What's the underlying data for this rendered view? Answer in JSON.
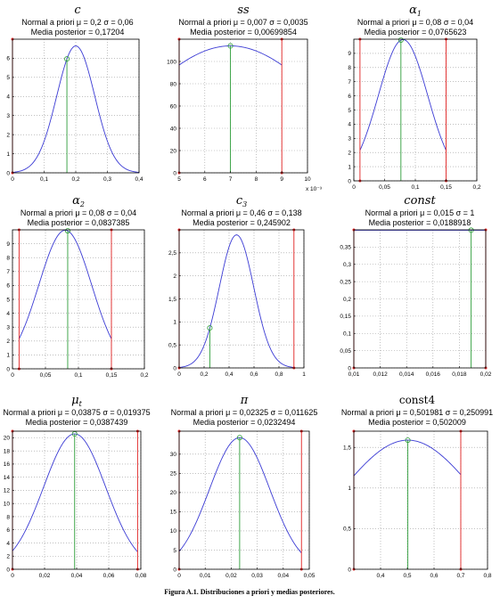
{
  "caption": "Figura A.1.  Distribuciones a priori y medias posteriores.",
  "colors": {
    "prior": "#3b3bd4",
    "posterior": "#2e9e3a",
    "bounds": "#e02020",
    "grid": "#9a9a9a",
    "frame": "#000000"
  },
  "chart_data": [
    {
      "type": "line",
      "title": "c",
      "title_sub": "",
      "prior_text": "Normal a priori μ = 0,2 σ = 0,06",
      "posterior_text": "Media posterior = 0,17204",
      "prior_mean": 0.2,
      "prior_sd": 0.06,
      "curve_range": [
        0.0,
        0.4
      ],
      "posterior_mean": 0.17204,
      "bounds": [
        0.0
      ],
      "xlim": [
        0,
        0.4
      ],
      "ylim": [
        0,
        7
      ],
      "xticks": [
        0,
        0.1,
        0.2,
        0.3,
        0.4
      ],
      "xticklabels": [
        "0",
        "0,1",
        "0,2",
        "0,3",
        "0,4"
      ],
      "yticks": [
        0,
        1,
        2,
        3,
        4,
        5,
        6
      ],
      "yticklabels": [
        "0",
        "1",
        "2",
        "3",
        "4",
        "5",
        "6"
      ],
      "x_multiplier": ""
    },
    {
      "type": "line",
      "title": "ss",
      "title_sub": "",
      "prior_text": "Normal a priori μ = 0,007 σ = 0,0035",
      "posterior_text": "Media posterior = 0,00699854",
      "prior_mean": 0.007,
      "prior_sd": 0.0035,
      "curve_range": [
        0.005,
        0.009
      ],
      "posterior_mean": 0.00699854,
      "bounds": [
        0.005,
        0.009
      ],
      "xlim": [
        0.005,
        0.01
      ],
      "ylim": [
        0,
        120
      ],
      "xticks": [
        0.005,
        0.006,
        0.007,
        0.008,
        0.009,
        0.01
      ],
      "xticklabels": [
        "5",
        "6",
        "7",
        "8",
        "9",
        "10"
      ],
      "yticks": [
        0,
        20,
        40,
        60,
        80,
        100
      ],
      "yticklabels": [
        "0",
        "20",
        "40",
        "60",
        "80",
        "100"
      ],
      "x_multiplier": "x 10⁻³"
    },
    {
      "type": "line",
      "title": "α",
      "title_sub": "1",
      "prior_text": "Normal a priori μ = 0,08 σ = 0,04",
      "posterior_text": "Media posterior = 0,0765623",
      "prior_mean": 0.08,
      "prior_sd": 0.04,
      "curve_range": [
        0.01,
        0.15
      ],
      "posterior_mean": 0.0765623,
      "bounds": [
        0.01,
        0.15
      ],
      "xlim": [
        0,
        0.2
      ],
      "ylim": [
        0,
        10
      ],
      "xticks": [
        0,
        0.05,
        0.1,
        0.15,
        0.2
      ],
      "xticklabels": [
        "0",
        "0,05",
        "0,1",
        "0,15",
        "0,2"
      ],
      "yticks": [
        0,
        1,
        2,
        3,
        4,
        5,
        6,
        7,
        8,
        9
      ],
      "yticklabels": [
        "0",
        "1",
        "2",
        "3",
        "4",
        "5",
        "6",
        "7",
        "8",
        "9"
      ],
      "x_multiplier": ""
    },
    {
      "type": "line",
      "title": "α",
      "title_sub": "2",
      "prior_text": "Normal a priori μ = 0,08 σ = 0,04",
      "posterior_text": "Media posterior = 0,0837385",
      "prior_mean": 0.08,
      "prior_sd": 0.04,
      "curve_range": [
        0.01,
        0.15
      ],
      "posterior_mean": 0.0837385,
      "bounds": [
        0.01,
        0.15
      ],
      "xlim": [
        0,
        0.2
      ],
      "ylim": [
        0,
        10
      ],
      "xticks": [
        0,
        0.05,
        0.1,
        0.15,
        0.2
      ],
      "xticklabels": [
        "0",
        "0,05",
        "0,1",
        "0,15",
        "0,2"
      ],
      "yticks": [
        0,
        1,
        2,
        3,
        4,
        5,
        6,
        7,
        8,
        9
      ],
      "yticklabels": [
        "0",
        "1",
        "2",
        "3",
        "4",
        "5",
        "6",
        "7",
        "8",
        "9"
      ],
      "x_multiplier": ""
    },
    {
      "type": "line",
      "title": "c",
      "title_sub": "3",
      "prior_text": "Normal a priori μ = 0,46 σ = 0,138",
      "posterior_text": "Media posterior = 0,245902",
      "prior_mean": 0.46,
      "prior_sd": 0.138,
      "curve_range": [
        0.0,
        0.92
      ],
      "posterior_mean": 0.245902,
      "bounds": [
        0.0,
        0.92
      ],
      "xlim": [
        0,
        1
      ],
      "ylim": [
        0,
        3
      ],
      "xticks": [
        0,
        0.2,
        0.4,
        0.6,
        0.8,
        1
      ],
      "xticklabels": [
        "0",
        "0,2",
        "0,4",
        "0,6",
        "0,8",
        "1"
      ],
      "yticks": [
        0,
        0.5,
        1,
        1.5,
        2,
        2.5
      ],
      "yticklabels": [
        "0",
        "0,5",
        "1",
        "1,5",
        "2",
        "2,5"
      ],
      "x_multiplier": ""
    },
    {
      "type": "line",
      "title": "const",
      "title_sub": "",
      "prior_text": "Normal a priori μ = 0,015 σ = 1",
      "posterior_text": "Media posterior = 0,0188918",
      "prior_mean": 0.015,
      "prior_sd": 1,
      "curve_range": [
        0.01,
        0.02
      ],
      "posterior_mean": 0.0188918,
      "bounds": [
        0.01,
        0.02
      ],
      "xlim": [
        0.01,
        0.02
      ],
      "ylim": [
        0,
        0.4
      ],
      "xticks": [
        0.01,
        0.012,
        0.014,
        0.016,
        0.018,
        0.02
      ],
      "xticklabels": [
        "0,01",
        "0,012",
        "0,014",
        "0,016",
        "0,018",
        "0,02"
      ],
      "yticks": [
        0,
        0.05,
        0.1,
        0.15,
        0.2,
        0.25,
        0.3,
        0.35
      ],
      "yticklabels": [
        "0",
        "0,05",
        "0,1",
        "0,15",
        "0,2",
        "0,25",
        "0,3",
        "0,35"
      ],
      "x_multiplier": ""
    },
    {
      "type": "line",
      "title": "μ",
      "title_sub": "t",
      "prior_text": "Normal a priori μ = 0,03875 σ = 0,019375",
      "posterior_text": "Media posterior = 0,0387439",
      "prior_mean": 0.03875,
      "prior_sd": 0.019375,
      "curve_range": [
        0.0,
        0.078
      ],
      "posterior_mean": 0.0387439,
      "bounds": [
        0.0,
        0.078
      ],
      "xlim": [
        0,
        0.08
      ],
      "ylim": [
        0,
        21
      ],
      "xticks": [
        0,
        0.02,
        0.04,
        0.06,
        0.08
      ],
      "xticklabels": [
        "0",
        "0,02",
        "0,04",
        "0,06",
        "0,08"
      ],
      "yticks": [
        0,
        2,
        4,
        6,
        8,
        10,
        12,
        14,
        16,
        18,
        20
      ],
      "yticklabels": [
        "0",
        "2",
        "4",
        "6",
        "8",
        "10",
        "12",
        "14",
        "16",
        "18",
        "20"
      ],
      "x_multiplier": ""
    },
    {
      "type": "line",
      "title": "π",
      "title_sub": "",
      "prior_text": "Normal a priori μ = 0,02325 σ = 0,011625",
      "posterior_text": "Media posterior = 0,0232494",
      "prior_mean": 0.02325,
      "prior_sd": 0.011625,
      "curve_range": [
        0.0,
        0.047
      ],
      "posterior_mean": 0.0232494,
      "bounds": [
        0.0,
        0.047
      ],
      "xlim": [
        0,
        0.05
      ],
      "ylim": [
        0,
        36
      ],
      "xticks": [
        0,
        0.01,
        0.02,
        0.03,
        0.04,
        0.05
      ],
      "xticklabels": [
        "0",
        "0,01",
        "0,02",
        "0,03",
        "0,04",
        "0,05"
      ],
      "yticks": [
        0,
        5,
        10,
        15,
        20,
        25,
        30
      ],
      "yticklabels": [
        "0",
        "5",
        "10",
        "15",
        "20",
        "25",
        "30"
      ],
      "x_multiplier": ""
    },
    {
      "type": "line",
      "title": "const4",
      "title_sub": "",
      "prior_text": "Normal a priori μ = 0,501981 σ = 0,250991",
      "posterior_text": "Media posterior = 0,502009",
      "prior_mean": 0.501981,
      "prior_sd": 0.250991,
      "curve_range": [
        0.3,
        0.7
      ],
      "posterior_mean": 0.502009,
      "bounds": [
        0.3,
        0.7
      ],
      "xlim": [
        0.3,
        0.8
      ],
      "ylim": [
        0,
        1.7
      ],
      "xticks": [
        0.3,
        0.4,
        0.5,
        0.6,
        0.7,
        0.8
      ],
      "xticklabels": [
        "",
        "0,4",
        "0,5",
        "0,6",
        "0,7",
        "0,8"
      ],
      "yticks": [
        0,
        0.5,
        1,
        1.5
      ],
      "yticklabels": [
        "0",
        "0,5",
        "1",
        "1,5"
      ],
      "x_multiplier": ""
    }
  ]
}
